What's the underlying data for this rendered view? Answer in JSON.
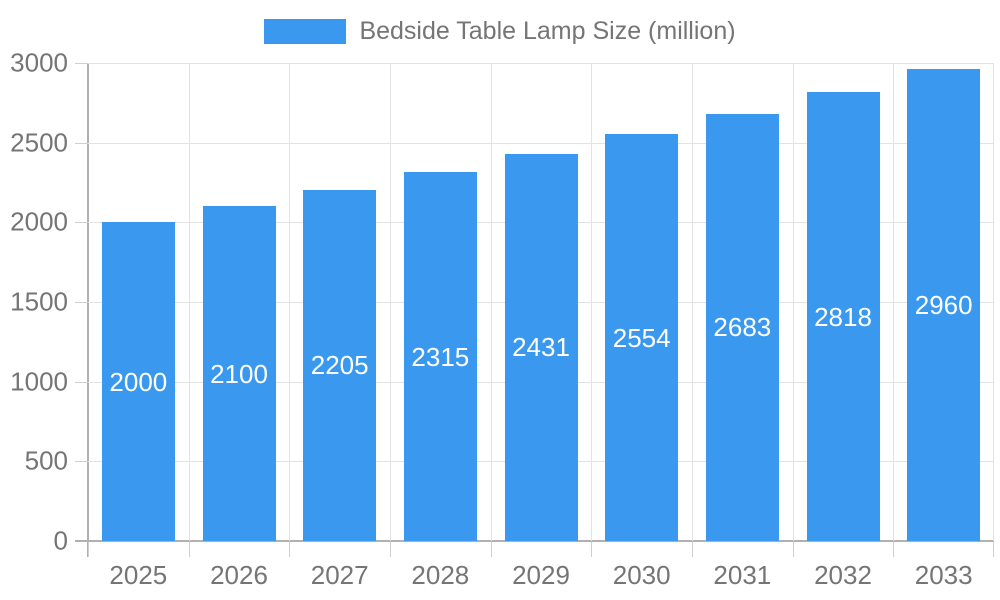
{
  "chart_data": {
    "type": "bar",
    "title": "Bedside Table Lamp Size (million)",
    "categories": [
      "2025",
      "2026",
      "2027",
      "2028",
      "2029",
      "2030",
      "2031",
      "2032",
      "2033"
    ],
    "values": [
      2000,
      2100,
      2205,
      2315,
      2431,
      2554,
      2683,
      2818,
      2960
    ],
    "xlabel": "",
    "ylabel": "",
    "ylim": [
      0,
      3000
    ],
    "yticks": [
      0,
      500,
      1000,
      1500,
      2000,
      2500,
      3000
    ],
    "grid": true,
    "legend_position": "top-center",
    "bar_label_position": "inside-center",
    "colors": {
      "bar": "#3A99EE",
      "bar_label": "#FFFFFF",
      "axis_text": "#757575",
      "legend_text": "#757575",
      "gridline": "#E3E3E3",
      "tick": "#CFCFCF",
      "axis_line": "#B0B0B0",
      "background": "#FFFFFF"
    }
  }
}
